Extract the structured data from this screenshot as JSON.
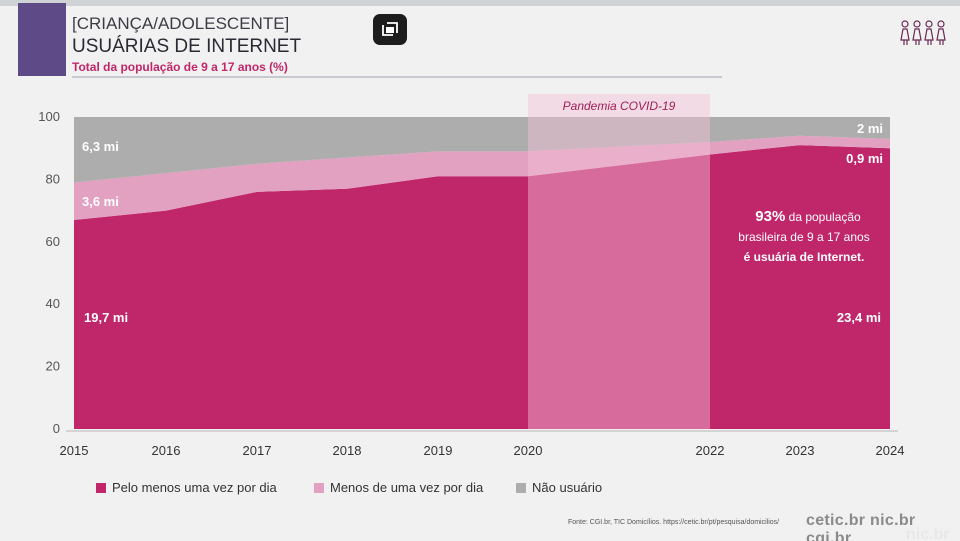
{
  "header": {
    "kicker": "[CRIANÇA/ADOLESCENTE]",
    "title": "USUÁRIAS DE INTERNET",
    "subtitle": "Total da população de 9 a 17 anos (%)"
  },
  "colors": {
    "daily": "#c0266a",
    "less_than_daily": "#e2a1c0",
    "non_user": "#adadad",
    "pandemic_band": "#f3c2d7",
    "subtitle": "#c0266a"
  },
  "chart_data": {
    "type": "area",
    "stacked": true,
    "x": [
      "2015",
      "2016",
      "2017",
      "2018",
      "2019",
      "2020",
      "2022",
      "2023",
      "2024"
    ],
    "ylim": [
      0,
      100
    ],
    "yticks": [
      0,
      20,
      40,
      60,
      80,
      100
    ],
    "grid": false,
    "series": [
      {
        "name": "Pelo menos uma vez por dia",
        "color": "#c0266a",
        "values": [
          67,
          70,
          76,
          77,
          81,
          81,
          88,
          91,
          90
        ]
      },
      {
        "name": "Menos de uma vez por dia",
        "color": "#e2a1c0",
        "values": [
          12,
          12,
          9,
          10,
          8,
          8,
          4,
          3,
          3
        ]
      },
      {
        "name": "Não usuário",
        "color": "#adadad",
        "values": [
          21,
          18,
          15,
          13,
          11,
          11,
          8,
          6,
          7
        ]
      }
    ],
    "shaded_region": {
      "label": "Pandemia COVID-19",
      "from": "2020",
      "to": "2022"
    },
    "annotations": {
      "non_user_2015": "6,3 mi",
      "less_daily_2015": "3,6 mi",
      "daily_2015": "19,7 mi",
      "non_user_2024": "2 mi",
      "less_daily_2024": "0,9 mi",
      "daily_2024": "23,4 mi",
      "callout_pct": "93%",
      "callout_line1": " da população",
      "callout_line2": "brasileira de 9 a 17 anos",
      "callout_line3": "é usuária de Internet."
    },
    "legend": {
      "position": "bottom-left",
      "items": [
        "Pelo menos uma vez por dia",
        "Menos de uma vez por dia",
        "Não usuário"
      ]
    }
  },
  "footer": {
    "source": "Fonte: CGI.br, TIC Domicílios. https://cetic.br/pt/pesquisa/domicilios/",
    "logos": "cetic.br  nic.br  cgi.br",
    "corner": "nic.br"
  }
}
